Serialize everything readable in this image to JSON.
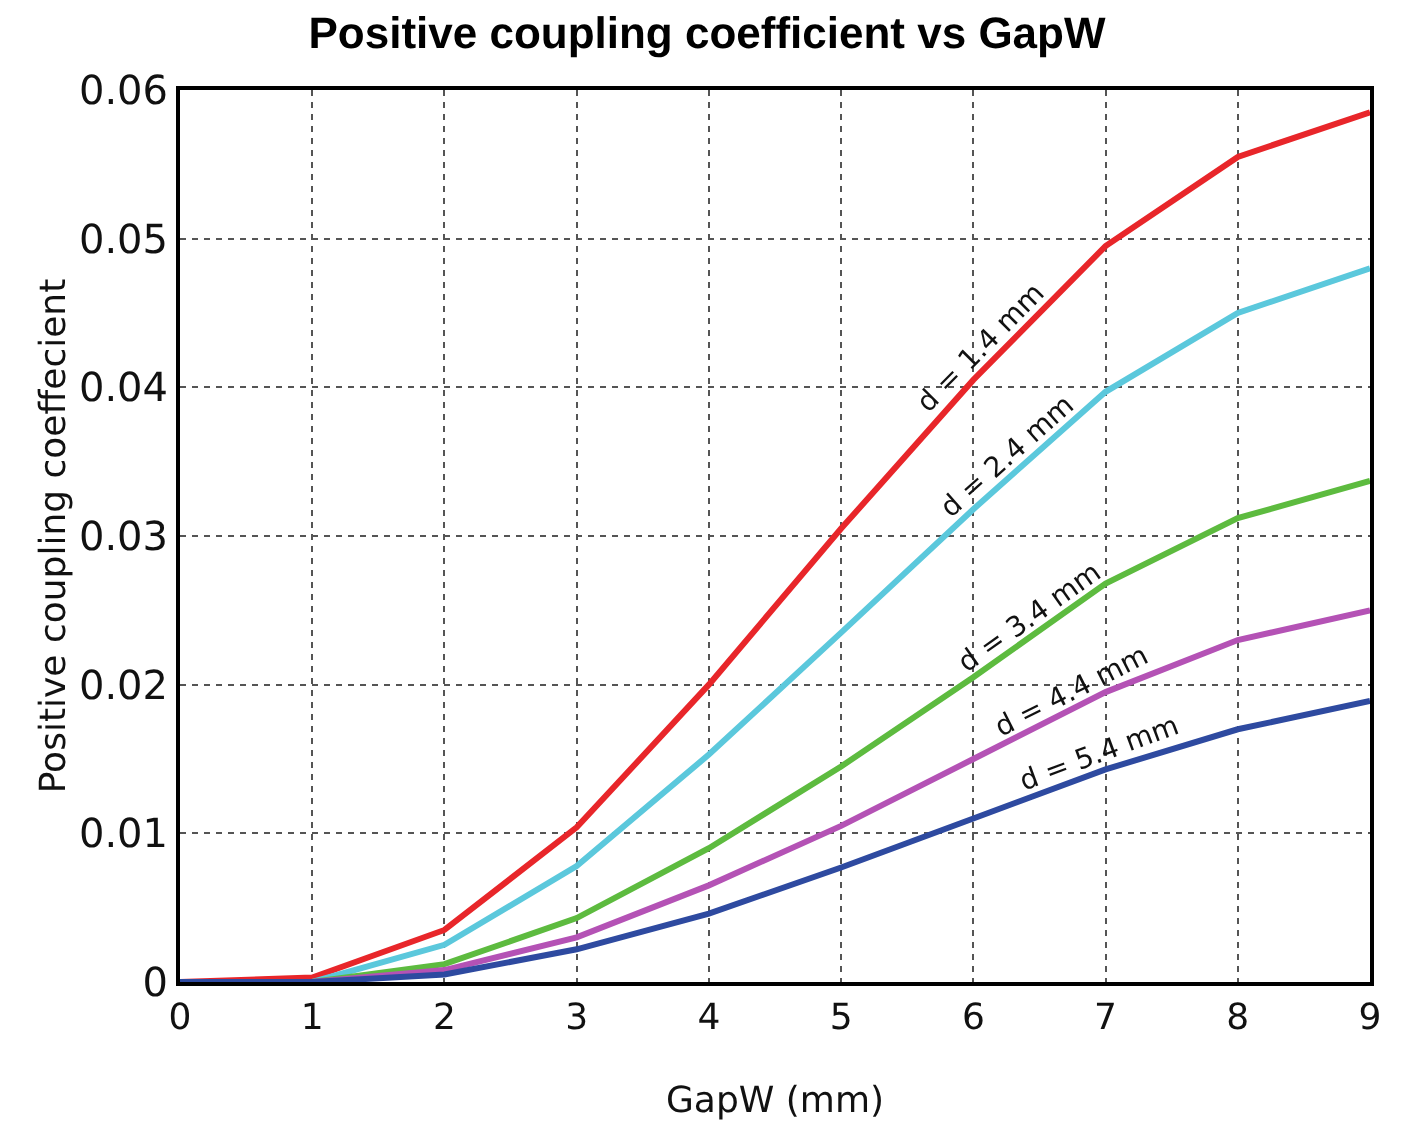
{
  "chart_data": {
    "type": "line",
    "title": "Positive coupling coefficient vs GapW",
    "xlabel": "GapW (mm)",
    "ylabel": "Positive coupling coeffecient",
    "x": [
      0,
      1,
      2,
      3,
      4,
      5,
      6,
      7,
      8,
      9
    ],
    "series": [
      {
        "name": "d = 1.4 mm",
        "color": "#e8262a",
        "values": [
          0,
          0.0003,
          0.0035,
          0.0104,
          0.02,
          0.0305,
          0.0405,
          0.0495,
          0.0555,
          0.0585
        ]
      },
      {
        "name": "d = 2.4 mm",
        "color": "#5bc8dc",
        "values": [
          0,
          0,
          0.0025,
          0.0078,
          0.0153,
          0.0235,
          0.0318,
          0.0397,
          0.045,
          0.048
        ]
      },
      {
        "name": "d = 3.4 mm",
        "color": "#5dbb3f",
        "values": [
          0,
          0,
          0.0012,
          0.0043,
          0.009,
          0.0145,
          0.0205,
          0.0268,
          0.0312,
          0.0337
        ]
      },
      {
        "name": "d = 4.4 mm",
        "color": "#b452b5",
        "values": [
          0,
          0,
          0.0008,
          0.003,
          0.0065,
          0.0105,
          0.015,
          0.0195,
          0.023,
          0.025
        ]
      },
      {
        "name": "d = 5.4 mm",
        "color": "#2e4aa0",
        "values": [
          0,
          0,
          0.0005,
          0.0022,
          0.0046,
          0.0077,
          0.011,
          0.0143,
          0.017,
          0.0189
        ]
      }
    ],
    "xlim": [
      0,
      9
    ],
    "xticks": [
      0,
      1,
      2,
      3,
      4,
      5,
      6,
      7,
      8,
      9
    ],
    "ylim": [
      0,
      0.06
    ],
    "yticks": [
      0,
      0.01,
      0.02,
      0.03,
      0.04,
      0.05,
      0.06
    ],
    "grid": true,
    "legend": false,
    "marker": "none",
    "line_style": "solid"
  }
}
